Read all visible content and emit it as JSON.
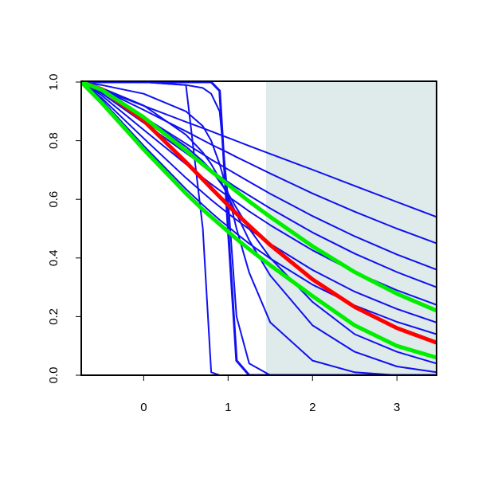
{
  "chart_data": {
    "type": "line",
    "x": [
      -0.74,
      -0.5,
      0,
      0.5,
      0.7,
      0.8,
      0.9,
      1,
      1.1,
      1.25,
      1.5,
      2,
      2.5,
      3,
      3.47
    ],
    "xlim": [
      -0.74,
      3.47
    ],
    "xticks": [
      0,
      1,
      2,
      3
    ],
    "ylim": [
      0,
      1
    ],
    "yticks": [
      {
        "value": 0,
        "label": "0.0"
      },
      0.2,
      0.4,
      0.6,
      0.8,
      {
        "value": 1,
        "label": "1.0"
      }
    ],
    "shaded_region": [
      1.45,
      3.47
    ],
    "shade_color": "#dfeaea",
    "series": [
      {
        "color": "#1010f0",
        "width": 2,
        "values": [
          1,
          0.974,
          0.919,
          0.864,
          0.843,
          0.832,
          0.821,
          0.81,
          0.799,
          0.782,
          0.755,
          0.701,
          0.646,
          0.591,
          0.54
        ]
      },
      {
        "color": "#1010f0",
        "width": 2,
        "values": [
          1,
          0.975,
          0.905,
          0.832,
          0.802,
          0.787,
          0.773,
          0.759,
          0.744,
          0.723,
          0.688,
          0.62,
          0.558,
          0.5,
          0.45
        ]
      },
      {
        "color": "#1010f0",
        "width": 2,
        "values": [
          1,
          0.968,
          0.881,
          0.79,
          0.754,
          0.736,
          0.719,
          0.702,
          0.685,
          0.66,
          0.619,
          0.543,
          0.474,
          0.412,
          0.36
        ]
      },
      {
        "color": "#1010f0",
        "width": 2,
        "values": [
          1,
          0.962,
          0.861,
          0.758,
          0.717,
          0.697,
          0.678,
          0.659,
          0.64,
          0.613,
          0.569,
          0.487,
          0.415,
          0.352,
          0.3
        ]
      },
      {
        "color": "#1010f0",
        "width": 2,
        "values": [
          1,
          0.955,
          0.837,
          0.72,
          0.674,
          0.652,
          0.631,
          0.61,
          0.59,
          0.559,
          0.512,
          0.426,
          0.352,
          0.29,
          0.24
        ]
      },
      {
        "color": "#1010f0",
        "width": 2,
        "values": [
          1,
          0.946,
          0.808,
          0.673,
          0.623,
          0.598,
          0.575,
          0.552,
          0.53,
          0.498,
          0.448,
          0.359,
          0.285,
          0.226,
          0.18
        ]
      },
      {
        "color": "#1010f0",
        "width": 2,
        "values": [
          1,
          0.939,
          0.783,
          0.635,
          0.581,
          0.555,
          0.53,
          0.507,
          0.483,
          0.449,
          0.398,
          0.309,
          0.238,
          0.182,
          0.14
        ]
      },
      {
        "color": "#1010f0",
        "width": 2,
        "values": [
          1,
          1,
          1,
          0.99,
          0.5,
          0.01,
          0,
          0,
          0,
          0,
          0,
          0,
          0,
          0,
          0
        ]
      },
      {
        "color": "#1010f0",
        "width": 3,
        "values": [
          1,
          1,
          1,
          1,
          1,
          1,
          0.97,
          0.5,
          0.05,
          0,
          0,
          0,
          0,
          0,
          0
        ]
      },
      {
        "color": "#1010f0",
        "width": 2,
        "values": [
          1,
          1,
          1,
          0.99,
          0.98,
          0.96,
          0.9,
          0.6,
          0.2,
          0.04,
          0,
          0,
          0,
          0,
          0
        ]
      },
      {
        "color": "#1010f0",
        "width": 2,
        "values": [
          1,
          0.99,
          0.96,
          0.9,
          0.85,
          0.8,
          0.72,
          0.62,
          0.5,
          0.35,
          0.18,
          0.05,
          0.01,
          0,
          0
        ]
      },
      {
        "color": "#1010f0",
        "width": 2,
        "values": [
          1,
          0.98,
          0.92,
          0.82,
          0.76,
          0.72,
          0.67,
          0.61,
          0.55,
          0.46,
          0.34,
          0.17,
          0.08,
          0.03,
          0.01
        ]
      },
      {
        "color": "#1010f0",
        "width": 2,
        "values": [
          1,
          0.97,
          0.88,
          0.78,
          0.73,
          0.7,
          0.66,
          0.62,
          0.57,
          0.5,
          0.4,
          0.25,
          0.14,
          0.08,
          0.04
        ]
      },
      {
        "color": "#ff0000",
        "width": 5,
        "values": [
          1,
          0.976,
          0.868,
          0.727,
          0.668,
          0.638,
          0.609,
          0.58,
          0.551,
          0.51,
          0.444,
          0.327,
          0.233,
          0.161,
          0.111
        ]
      },
      {
        "color": "#00ee00",
        "width": 5,
        "values": [
          1,
          0.93,
          0.77,
          0.62,
          0.565,
          0.54,
          0.515,
          0.49,
          0.465,
          0.43,
          0.375,
          0.27,
          0.17,
          0.1,
          0.06
        ]
      },
      {
        "color": "#00ee00",
        "width": 5,
        "values": [
          1,
          0.974,
          0.88,
          0.766,
          0.719,
          0.696,
          0.673,
          0.65,
          0.627,
          0.593,
          0.54,
          0.44,
          0.352,
          0.278,
          0.22
        ]
      }
    ]
  }
}
